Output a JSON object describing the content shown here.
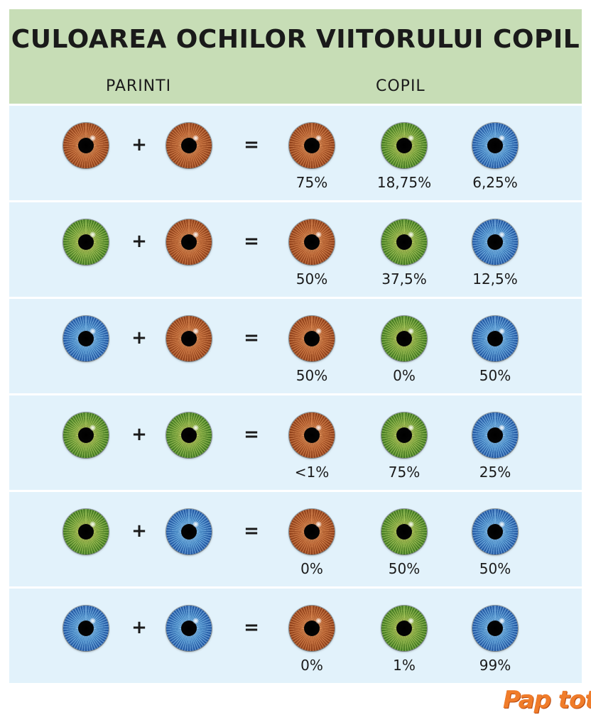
{
  "title": "CULOAREA OCHILOR VIITORULUI COPIL",
  "columns": {
    "parents": "PARINTI",
    "child": "COPIL"
  },
  "symbols": {
    "plus": "+",
    "equals": "="
  },
  "colors": {
    "brown": "#a34b21",
    "green": "#4e8a2a",
    "blue": "#2a66b4",
    "header_bg": "#c7ddb6",
    "row_bg": "#e2f2fb"
  },
  "rows": [
    {
      "parent1": "brown",
      "parent2": "brown",
      "brown": "75%",
      "green": "18,75%",
      "blue": "6,25%"
    },
    {
      "parent1": "green",
      "parent2": "brown",
      "brown": "50%",
      "green": "37,5%",
      "blue": "12,5%"
    },
    {
      "parent1": "blue",
      "parent2": "brown",
      "brown": "50%",
      "green": "0%",
      "blue": "50%"
    },
    {
      "parent1": "green",
      "parent2": "green",
      "brown": "<1%",
      "green": "75%",
      "blue": "25%"
    },
    {
      "parent1": "green",
      "parent2": "blue",
      "brown": "0%",
      "green": "50%",
      "blue": "50%"
    },
    {
      "parent1": "blue",
      "parent2": "blue",
      "brown": "0%",
      "green": "1%",
      "blue": "99%"
    }
  ],
  "logo": {
    "text": "Pap tot!"
  }
}
